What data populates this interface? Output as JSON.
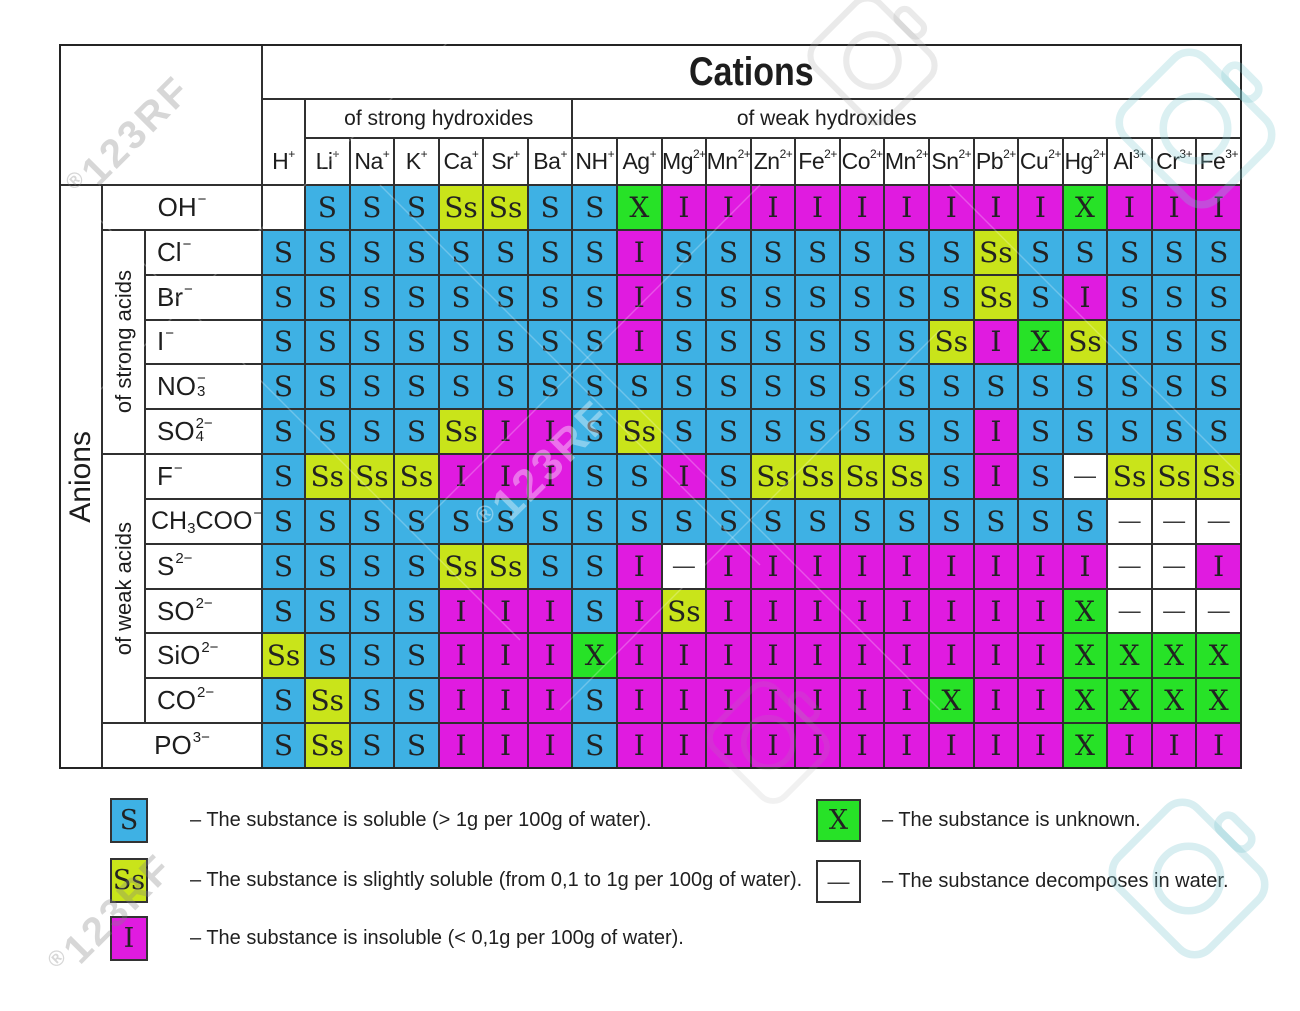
{
  "table": {
    "cations_title": "Cations",
    "strong_hydroxides_label": "of strong hydroxides",
    "weak_hydroxides_label": "of weak hydroxides",
    "anions_label": "Anions",
    "strong_acids_label": "of strong acids",
    "weak_acids_label": "of weak acids",
    "cations": [
      {
        "t": "H",
        "sup": "+"
      },
      {
        "t": "Li",
        "sup": "+"
      },
      {
        "t": "Na",
        "sup": "+"
      },
      {
        "t": "K",
        "sup": "+"
      },
      {
        "t": "Ca",
        "sup": "+"
      },
      {
        "t": "Sr",
        "sup": "+"
      },
      {
        "t": "Ba",
        "sup": "+"
      },
      {
        "t": "NH",
        "sup": "+"
      },
      {
        "t": "Ag",
        "sup": "+"
      },
      {
        "t": "Mg",
        "sup": "2+"
      },
      {
        "t": "Mn",
        "sup": "2+"
      },
      {
        "t": "Zn",
        "sup": "2+"
      },
      {
        "t": "Fe",
        "sup": "2+"
      },
      {
        "t": "Co",
        "sup": "2+"
      },
      {
        "t": "Mn",
        "sup": "2+"
      },
      {
        "t": "Sn",
        "sup": "2+"
      },
      {
        "t": "Pb",
        "sup": "2+"
      },
      {
        "t": "Cu",
        "sup": "2+"
      },
      {
        "t": "Hg",
        "sup": "2+"
      },
      {
        "t": "Al",
        "sup": "3+"
      },
      {
        "t": "Cr",
        "sup": "3+"
      },
      {
        "t": "Fe",
        "sup": "3+"
      }
    ],
    "anions": [
      {
        "name": "OH",
        "group": "none",
        "parts": [
          {
            "t": "OH"
          },
          {
            "sup": "−"
          }
        ]
      },
      {
        "name": "Cl",
        "group": "strong",
        "parts": [
          {
            "t": "Cl"
          },
          {
            "sup": "−"
          }
        ]
      },
      {
        "name": "Br",
        "group": "strong",
        "parts": [
          {
            "t": "Br"
          },
          {
            "sup": "−"
          }
        ]
      },
      {
        "name": "I",
        "group": "strong",
        "parts": [
          {
            "t": "I"
          },
          {
            "sup": "−"
          }
        ]
      },
      {
        "name": "NO3",
        "group": "strong",
        "parts": [
          {
            "t": "NO"
          },
          {
            "stack": [
              "−",
              "3"
            ]
          }
        ]
      },
      {
        "name": "SO4",
        "group": "strong",
        "parts": [
          {
            "t": "SO"
          },
          {
            "stack": [
              "2−",
              "4"
            ]
          }
        ]
      },
      {
        "name": "F",
        "group": "weak",
        "parts": [
          {
            "t": "F"
          },
          {
            "sup": "−"
          }
        ]
      },
      {
        "name": "CH3COO",
        "group": "weak",
        "parts": [
          {
            "t": "CH"
          },
          {
            "sub": "3"
          },
          {
            "t": "COO"
          },
          {
            "sup": "−"
          }
        ]
      },
      {
        "name": "S",
        "group": "weak",
        "parts": [
          {
            "t": "S"
          },
          {
            "sup": "2−"
          }
        ]
      },
      {
        "name": "SO",
        "group": "weak",
        "parts": [
          {
            "t": "SO"
          },
          {
            "sup": "2−"
          }
        ]
      },
      {
        "name": "SiO",
        "group": "weak",
        "parts": [
          {
            "t": "SiO"
          },
          {
            "sup": "2−"
          }
        ]
      },
      {
        "name": "CO",
        "group": "weak",
        "parts": [
          {
            "t": "CO"
          },
          {
            "sup": "2−"
          }
        ]
      },
      {
        "name": "PO",
        "group": "none",
        "parts": [
          {
            "t": "PO"
          },
          {
            "sup": "3−"
          }
        ]
      }
    ],
    "cells": [
      [
        "E",
        "S",
        "S",
        "S",
        "Ss",
        "Ss",
        "S",
        "S",
        "X",
        "I",
        "I",
        "I",
        "I",
        "I",
        "I",
        "I",
        "I",
        "I",
        "X",
        "I",
        "I",
        "I"
      ],
      [
        "S",
        "S",
        "S",
        "S",
        "S",
        "S",
        "S",
        "S",
        "I",
        "S",
        "S",
        "S",
        "S",
        "S",
        "S",
        "S",
        "Ss",
        "S",
        "S",
        "S",
        "S",
        "S"
      ],
      [
        "S",
        "S",
        "S",
        "S",
        "S",
        "S",
        "S",
        "S",
        "I",
        "S",
        "S",
        "S",
        "S",
        "S",
        "S",
        "S",
        "Ss",
        "S",
        "I",
        "S",
        "S",
        "S"
      ],
      [
        "S",
        "S",
        "S",
        "S",
        "S",
        "S",
        "S",
        "S",
        "I",
        "S",
        "S",
        "S",
        "S",
        "S",
        "S",
        "Ss",
        "I",
        "X",
        "Ss",
        "S",
        "S",
        "S"
      ],
      [
        "S",
        "S",
        "S",
        "S",
        "S",
        "S",
        "S",
        "S",
        "S",
        "S",
        "S",
        "S",
        "S",
        "S",
        "S",
        "S",
        "S",
        "S",
        "S",
        "S",
        "S",
        "S"
      ],
      [
        "S",
        "S",
        "S",
        "S",
        "Ss",
        "I",
        "I",
        "S",
        "Ss",
        "S",
        "S",
        "S",
        "S",
        "S",
        "S",
        "S",
        "I",
        "S",
        "S",
        "S",
        "S",
        "S"
      ],
      [
        "S",
        "Ss",
        "Ss",
        "Ss",
        "I",
        "I",
        "I",
        "S",
        "S",
        "I",
        "S",
        "Ss",
        "Ss",
        "Ss",
        "Ss",
        "S",
        "I",
        "S",
        "D",
        "Ss",
        "Ss",
        "Ss"
      ],
      [
        "S",
        "S",
        "S",
        "S",
        "S",
        "S",
        "S",
        "S",
        "S",
        "S",
        "S",
        "S",
        "S",
        "S",
        "S",
        "S",
        "S",
        "S",
        "S",
        "D",
        "D",
        "D"
      ],
      [
        "S",
        "S",
        "S",
        "S",
        "Ss",
        "Ss",
        "S",
        "S",
        "I",
        "D",
        "I",
        "I",
        "I",
        "I",
        "I",
        "I",
        "I",
        "I",
        "I",
        "D",
        "D",
        "I"
      ],
      [
        "S",
        "S",
        "S",
        "S",
        "I",
        "I",
        "I",
        "S",
        "I",
        "Ss",
        "I",
        "I",
        "I",
        "I",
        "I",
        "I",
        "I",
        "I",
        "X",
        "D",
        "D",
        "D"
      ],
      [
        "Ss",
        "S",
        "S",
        "S",
        "I",
        "I",
        "I",
        "X",
        "I",
        "I",
        "I",
        "I",
        "I",
        "I",
        "I",
        "I",
        "I",
        "I",
        "X",
        "X",
        "X",
        "X"
      ],
      [
        "S",
        "Ss",
        "S",
        "S",
        "I",
        "I",
        "I",
        "S",
        "I",
        "I",
        "I",
        "I",
        "I",
        "I",
        "I",
        "X",
        "I",
        "I",
        "X",
        "X",
        "X",
        "X"
      ],
      [
        "S",
        "Ss",
        "S",
        "S",
        "I",
        "I",
        "I",
        "S",
        "I",
        "I",
        "I",
        "I",
        "I",
        "I",
        "I",
        "I",
        "I",
        "I",
        "X",
        "I",
        "I",
        "I"
      ]
    ]
  },
  "codes": {
    "S": {
      "symbol": "S",
      "color": "#3eb1e4"
    },
    "Ss": {
      "symbol": "Ss",
      "color": "#c9e41a"
    },
    "I": {
      "symbol": "I",
      "color": "#e01be0"
    },
    "X": {
      "symbol": "X",
      "color": "#27e227"
    },
    "D": {
      "symbol": "—",
      "color": "#ffffff"
    },
    "E": {
      "symbol": "",
      "color": "#ffffff"
    }
  },
  "legend": [
    {
      "code": "S",
      "text": "– The substance is soluble (> 1g per 100g of water)."
    },
    {
      "code": "Ss",
      "text": "– The substance is slightly soluble (from 0,1 to 1g per 100g of water)."
    },
    {
      "code": "I",
      "text": "– The substance is insoluble (< 0,1g per 100g of water)."
    },
    {
      "code": "X",
      "text": "– The substance is unknown."
    },
    {
      "code": "D",
      "text": "– The substance decomposes in water."
    }
  ],
  "watermark_text": "123RF"
}
